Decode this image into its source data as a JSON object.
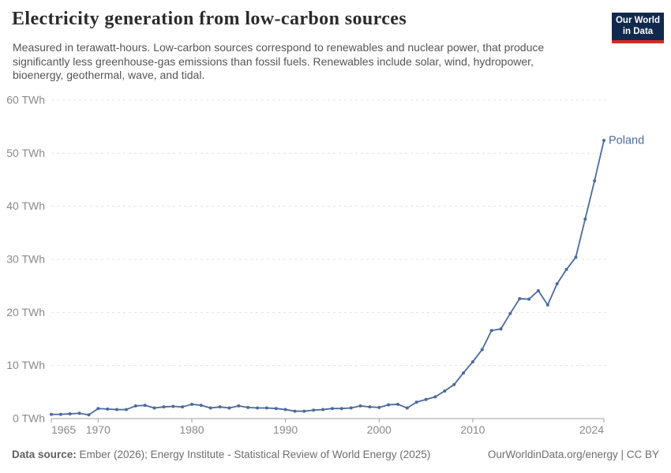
{
  "header": {
    "title": "Electricity generation from low-carbon sources",
    "subtitle_lines": [
      "Measured in terawatt-hours. Low-carbon sources correspond to renewables and nuclear power, that produce",
      "significantly less greenhouse-gas emissions than fossil fuels. Renewables include solar, wind, hydropower,",
      "bioenergy, geothermal, wave, and tidal."
    ],
    "logo": {
      "line1": "Our World",
      "line2": "in Data",
      "bg_color": "#12294E",
      "accent_color": "#D42B21"
    }
  },
  "chart_data": {
    "type": "line",
    "title": "Electricity generation from low-carbon sources",
    "unit": "TWh",
    "xlim": [
      1965,
      2024
    ],
    "ylim": [
      0,
      60
    ],
    "grid": "horizontal-dashed",
    "legend_position": "end-of-line-label",
    "x_ticks": [
      1965,
      1970,
      1980,
      1990,
      2000,
      2010,
      2024
    ],
    "x_tick_labels": [
      "1965",
      "1970",
      "1980",
      "1990",
      "2000",
      "2010",
      "2024"
    ],
    "y_ticks": [
      0,
      10,
      20,
      30,
      40,
      50,
      60
    ],
    "y_tick_labels": [
      "0 TWh",
      "10 TWh",
      "20 TWh",
      "30 TWh",
      "40 TWh",
      "50 TWh",
      "60 TWh"
    ],
    "series": [
      {
        "name": "Poland",
        "color": "#4C6A9C",
        "x": [
          1965,
          1966,
          1967,
          1968,
          1969,
          1970,
          1971,
          1972,
          1973,
          1974,
          1975,
          1976,
          1977,
          1978,
          1979,
          1980,
          1981,
          1982,
          1983,
          1984,
          1985,
          1986,
          1987,
          1988,
          1989,
          1990,
          1991,
          1992,
          1993,
          1994,
          1995,
          1996,
          1997,
          1998,
          1999,
          2000,
          2001,
          2002,
          2003,
          2004,
          2005,
          2006,
          2007,
          2008,
          2009,
          2010,
          2011,
          2012,
          2013,
          2014,
          2015,
          2016,
          2017,
          2018,
          2019,
          2020,
          2021,
          2022,
          2023,
          2024
        ],
        "values": [
          0.8,
          0.8,
          0.9,
          1.0,
          0.7,
          1.9,
          1.8,
          1.7,
          1.7,
          2.4,
          2.5,
          2.0,
          2.2,
          2.3,
          2.2,
          2.7,
          2.5,
          2.0,
          2.2,
          2.0,
          2.4,
          2.1,
          2.0,
          2.0,
          1.9,
          1.7,
          1.4,
          1.4,
          1.6,
          1.7,
          1.9,
          1.9,
          2.0,
          2.4,
          2.2,
          2.1,
          2.6,
          2.7,
          2.0,
          3.1,
          3.6,
          4.1,
          5.2,
          6.4,
          8.6,
          10.7,
          13.0,
          16.6,
          16.9,
          19.8,
          22.6,
          22.5,
          24.1,
          21.4,
          25.4,
          28.1,
          30.4,
          37.6,
          44.8,
          52.4
        ]
      }
    ],
    "colors": {
      "grid": "#e0e0e0",
      "axis": "#a0a0a0",
      "tick_text": "#8a8a8a"
    }
  },
  "footer": {
    "source_label": "Data source:",
    "source_text": " Ember (2026); Energy Institute - Statistical Review of World Energy (2025)",
    "credit": "OurWorldinData.org/energy | CC BY"
  }
}
